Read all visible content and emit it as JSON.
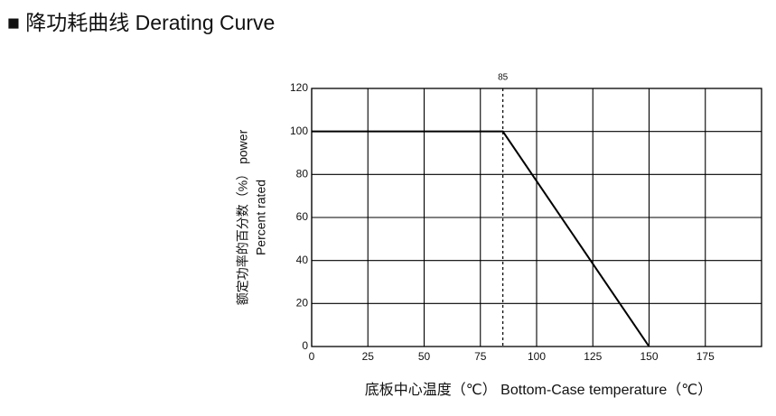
{
  "chart_data": {
    "type": "line",
    "title": "■ 降功耗曲线 Derating Curve",
    "xlabel": "底板中心温度（℃）  Bottom-Case  temperature（℃）",
    "ylabel": [
      "额定功率的百分数（%）     power",
      "Percent      rated"
    ],
    "x": [
      0,
      85,
      150
    ],
    "series": [
      {
        "color": "#000000",
        "values": [
          100,
          100,
          0
        ]
      }
    ],
    "xlim": [
      0,
      200
    ],
    "xticks": [
      0,
      25,
      50,
      75,
      100,
      125,
      150,
      175
    ],
    "ylim": [
      0,
      120
    ],
    "yticks": [
      0,
      20,
      40,
      60,
      80,
      100,
      120
    ],
    "grid": true,
    "annotation": {
      "text": "85",
      "x": 85
    }
  }
}
